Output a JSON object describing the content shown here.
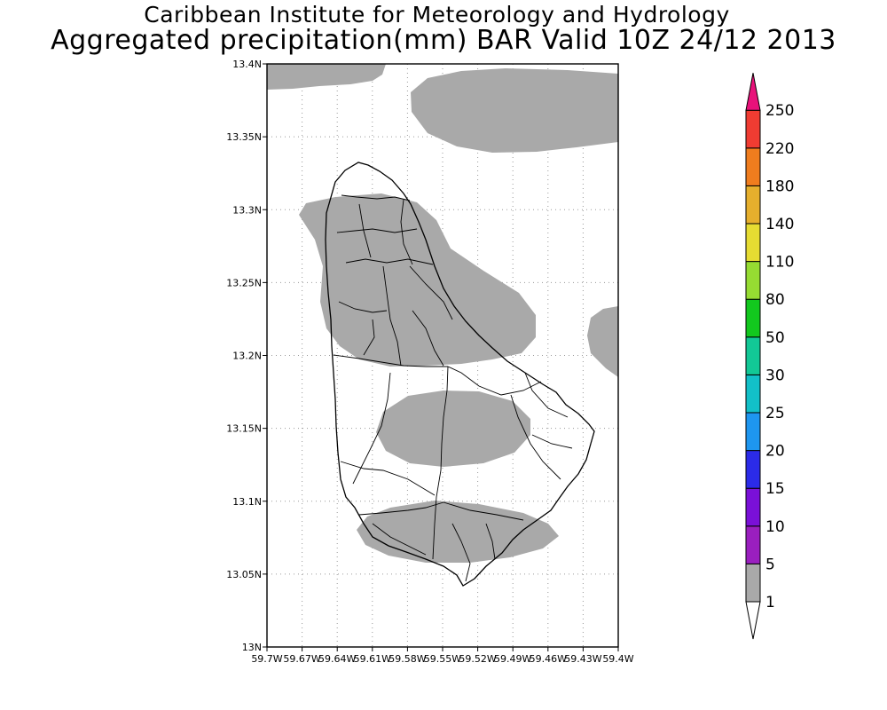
{
  "title_line1": "Caribbean Institute for Meteorology and Hydrology",
  "title_line2": "Aggregated precipitation(mm) BAR Valid 10Z 24/12 2013",
  "map": {
    "lon_range": [
      -59.7,
      -59.4
    ],
    "lat_range": [
      13.0,
      13.4
    ],
    "grid": "dotted",
    "x_ticks": [
      "59.7W",
      "59.67W",
      "59.64W",
      "59.61W",
      "59.58W",
      "59.55W",
      "59.52W",
      "59.49W",
      "59.46W",
      "59.43W",
      "59.4W"
    ],
    "y_ticks": [
      "13N",
      "13.05N",
      "13.1N",
      "13.15N",
      "13.2N",
      "13.25N",
      "13.3N",
      "13.35N",
      "13.4N"
    ]
  },
  "colorbar": {
    "levels": [
      "1",
      "5",
      "10",
      "15",
      "20",
      "25",
      "30",
      "50",
      "80",
      "110",
      "140",
      "180",
      "220",
      "250"
    ],
    "colors": [
      "#a9a9a9",
      "#9a1fbf",
      "#7a10d8",
      "#2b2be8",
      "#1e96f0",
      "#12c0c8",
      "#12c896",
      "#12c81e",
      "#96dc32",
      "#e6dc32",
      "#e6af2d",
      "#f07d1e",
      "#f03c32",
      "#e8127a"
    ]
  },
  "precip_color": "#a9a9a9"
}
